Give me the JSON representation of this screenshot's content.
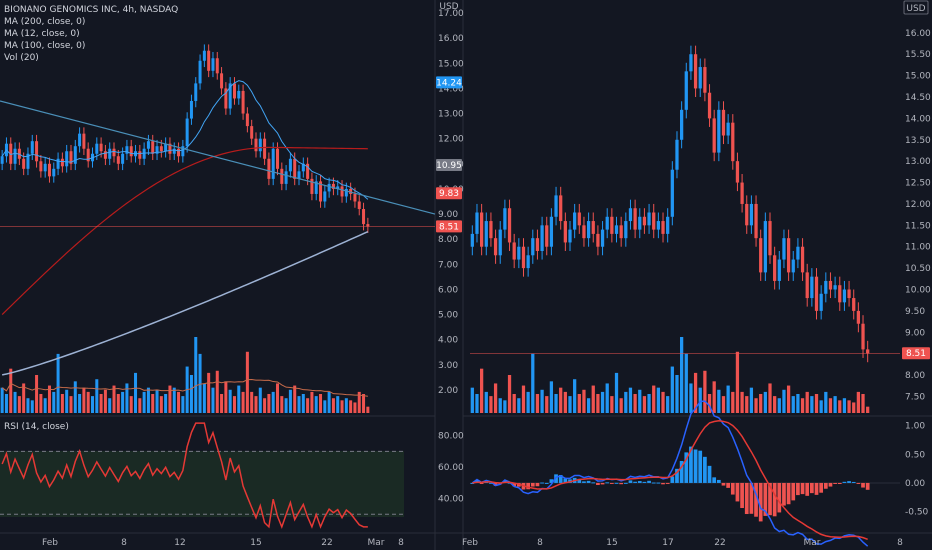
{
  "legend": {
    "title": "BIONANO GENOMICS INC, 4h, NASDAQ",
    "ma200": "MA (200, close, 0)",
    "ma12": "MA (12, close, 0)",
    "ma100": "MA (100, close, 0)",
    "vol": "Vol (20)",
    "rsi": "RSI (14, close)"
  },
  "colors": {
    "bg": "#131722",
    "up": "#2196f3",
    "down": "#ef5350",
    "ma200": "#9db2d4",
    "ma12": "#42a5f5",
    "ma100": "#b71c1c",
    "trend": "#4a8fb8",
    "rsi": "#e53935",
    "macd": "#2962ff",
    "signal": "#e53935"
  },
  "chart_data": [
    {
      "type": "candlestick",
      "title": "BIONANO GENOMICS INC, 4h, NASDAQ",
      "price_axis": {
        "unit": "USD",
        "ticks": [
          2.0,
          3.0,
          4.0,
          5.0,
          6.0,
          7.0,
          8.0,
          9.0,
          10.0,
          11.0,
          12.0,
          13.0,
          14.0,
          15.0,
          16.0,
          17.0
        ],
        "range": [
          1.6,
          17.2
        ]
      },
      "x_ticks": [
        "Feb",
        "8",
        "12",
        "15",
        "22",
        "Mar",
        "8"
      ],
      "price_tags": [
        {
          "value": "14.24",
          "color": "#2196f3"
        },
        {
          "value": "10.95",
          "color": "#787b86"
        },
        {
          "value": "9.83",
          "color": "#ef5350"
        },
        {
          "value": "8.51",
          "color": "#ef5350"
        }
      ],
      "close_series": [
        11.3,
        11.8,
        11.0,
        11.6,
        11.2,
        10.8,
        11.4,
        11.9,
        11.1,
        10.7,
        11.0,
        10.5,
        10.8,
        11.2,
        10.9,
        11.5,
        11.0,
        11.7,
        12.2,
        11.6,
        11.1,
        11.4,
        11.8,
        11.5,
        11.2,
        11.6,
        11.3,
        11.0,
        11.4,
        11.7,
        11.3,
        11.5,
        11.2,
        11.6,
        11.9,
        11.4,
        11.7,
        11.5,
        11.8,
        11.4,
        11.6,
        11.3,
        11.7,
        12.8,
        13.5,
        14.2,
        15.1,
        15.5,
        14.7,
        15.2,
        14.6,
        14.0,
        13.2,
        14.2,
        13.6,
        13.9,
        13.0,
        12.5,
        12.0,
        11.5,
        12.0,
        11.2,
        10.4,
        11.6,
        10.8,
        10.2,
        10.7,
        11.2,
        10.4,
        10.7,
        11.0,
        10.4,
        9.8,
        10.3,
        9.5,
        9.9,
        10.2,
        10.0,
        10.1,
        9.7,
        10.0,
        9.8,
        9.5,
        9.2,
        8.6,
        8.5
      ],
      "volume_series": [
        1.2,
        0.9,
        2.1,
        1.0,
        0.8,
        1.4,
        0.7,
        0.6,
        1.8,
        0.9,
        0.7,
        1.3,
        1.0,
        2.8,
        0.9,
        1.1,
        0.8,
        1.5,
        0.9,
        1.2,
        1.0,
        0.8,
        1.6,
        0.9,
        1.1,
        0.7,
        1.3,
        0.9,
        1.0,
        1.4,
        0.8,
        1.9,
        0.7,
        1.0,
        1.2,
        0.9,
        1.1,
        0.8,
        0.9,
        1.3,
        1.2,
        1.0,
        0.8,
        2.2,
        1.8,
        3.6,
        2.8,
        1.4,
        1.9,
        1.2,
        2.0,
        0.9,
        1.5,
        1.1,
        0.8,
        1.3,
        1.0,
        2.9,
        1.0,
        0.8,
        1.2,
        0.7,
        0.9,
        1.0,
        1.4,
        0.8,
        0.7,
        1.1,
        1.3,
        0.8,
        0.9,
        0.7,
        1.0,
        0.8,
        0.9,
        0.6,
        1.0,
        0.7,
        0.8,
        0.6,
        0.7,
        0.6,
        0.5,
        1.0,
        0.9,
        0.3
      ],
      "rsi": {
        "levels": [
          70,
          30
        ],
        "ticks": [
          40.0,
          60.0,
          80.0
        ]
      }
    },
    {
      "type": "candlestick",
      "price_axis": {
        "unit": "USD",
        "ticks": [
          7.5,
          8.0,
          8.5,
          9.0,
          9.5,
          10.0,
          10.5,
          11.0,
          11.5,
          12.0,
          12.5,
          13.0,
          13.5,
          14.0,
          14.5,
          15.0,
          15.5,
          16.0
        ],
        "range": [
          7.3,
          16.3
        ]
      },
      "x_ticks": [
        "Feb",
        "8",
        "15",
        "17",
        "22",
        "Mar",
        "8"
      ],
      "price_tags": [
        {
          "value": "8.51",
          "color": "#ef5350"
        }
      ],
      "close_series": [
        11.3,
        11.8,
        11.0,
        11.6,
        11.2,
        10.8,
        11.4,
        11.9,
        11.1,
        10.7,
        11.0,
        10.5,
        10.8,
        11.2,
        10.9,
        11.5,
        11.0,
        11.7,
        12.2,
        11.6,
        11.1,
        11.4,
        11.8,
        11.5,
        11.2,
        11.6,
        11.3,
        11.0,
        11.4,
        11.7,
        11.3,
        11.5,
        11.2,
        11.6,
        11.9,
        11.4,
        11.7,
        11.5,
        11.8,
        11.4,
        11.6,
        11.3,
        11.7,
        12.8,
        13.5,
        14.2,
        15.1,
        15.5,
        14.7,
        15.2,
        14.6,
        14.0,
        13.2,
        14.2,
        13.6,
        13.9,
        13.0,
        12.5,
        12.0,
        11.5,
        12.0,
        11.2,
        10.4,
        11.6,
        10.8,
        10.2,
        10.7,
        11.2,
        10.4,
        10.7,
        11.0,
        10.4,
        9.8,
        10.3,
        9.5,
        9.9,
        10.2,
        10.0,
        10.1,
        9.7,
        10.0,
        9.8,
        9.5,
        9.2,
        8.6,
        8.5
      ],
      "volume_series": [
        1.2,
        0.9,
        2.1,
        1.0,
        0.8,
        1.4,
        0.7,
        0.6,
        1.8,
        0.9,
        0.7,
        1.3,
        1.0,
        2.8,
        0.9,
        1.1,
        0.8,
        1.5,
        0.9,
        1.2,
        1.0,
        0.8,
        1.6,
        0.9,
        1.1,
        0.7,
        1.3,
        0.9,
        1.0,
        1.4,
        0.8,
        1.9,
        0.7,
        1.0,
        1.2,
        0.9,
        1.1,
        0.8,
        0.9,
        1.3,
        1.2,
        1.0,
        0.8,
        2.2,
        1.8,
        3.6,
        2.8,
        1.4,
        1.9,
        1.2,
        2.0,
        0.9,
        1.5,
        1.1,
        0.8,
        1.3,
        1.0,
        2.9,
        1.0,
        0.8,
        1.2,
        0.7,
        0.9,
        1.0,
        1.4,
        0.8,
        0.7,
        1.1,
        1.3,
        0.8,
        0.9,
        0.7,
        1.0,
        0.8,
        0.9,
        0.6,
        1.0,
        0.7,
        0.8,
        0.6,
        0.7,
        0.6,
        0.5,
        1.0,
        0.9,
        0.3
      ],
      "macd": {
        "ticks": [
          1.0,
          0.5,
          0.0,
          -0.5
        ]
      }
    }
  ]
}
